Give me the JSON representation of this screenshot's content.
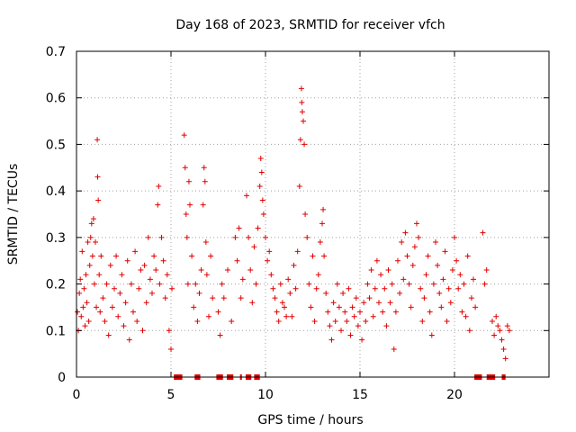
{
  "chart_data": {
    "type": "scatter",
    "title": "Day 168 of 2023, SRMTID for receiver vfch",
    "xlabel": "GPS time / hours",
    "ylabel": "SRMTID / TECUs",
    "xlim": [
      0,
      25
    ],
    "ylim": [
      0,
      0.7
    ],
    "xticks": [
      0,
      5,
      10,
      15,
      20
    ],
    "yticks": [
      0,
      0.1,
      0.2,
      0.3,
      0.4,
      0.5,
      0.6,
      0.7
    ],
    "grid": true,
    "marker": "+",
    "color": "#e00000",
    "series": [
      {
        "name": "SRMTID",
        "points": [
          [
            0.05,
            0.14
          ],
          [
            0.1,
            0.1
          ],
          [
            0.15,
            0.18
          ],
          [
            0.2,
            0.21
          ],
          [
            0.25,
            0.13
          ],
          [
            0.3,
            0.27
          ],
          [
            0.35,
            0.15
          ],
          [
            0.4,
            0.19
          ],
          [
            0.45,
            0.11
          ],
          [
            0.5,
            0.22
          ],
          [
            0.55,
            0.16
          ],
          [
            0.6,
            0.29
          ],
          [
            0.65,
            0.12
          ],
          [
            0.7,
            0.24
          ],
          [
            0.75,
            0.3
          ],
          [
            0.8,
            0.33
          ],
          [
            0.85,
            0.26
          ],
          [
            0.9,
            0.34
          ],
          [
            0.95,
            0.2
          ],
          [
            1.0,
            0.29
          ],
          [
            1.05,
            0.15
          ],
          [
            1.1,
            0.51
          ],
          [
            1.12,
            0.43
          ],
          [
            1.15,
            0.38
          ],
          [
            1.2,
            0.22
          ],
          [
            1.25,
            0.14
          ],
          [
            1.3,
            0.26
          ],
          [
            1.4,
            0.17
          ],
          [
            1.5,
            0.12
          ],
          [
            1.6,
            0.2
          ],
          [
            1.7,
            0.09
          ],
          [
            1.8,
            0.24
          ],
          [
            1.9,
            0.15
          ],
          [
            2.0,
            0.19
          ],
          [
            2.1,
            0.26
          ],
          [
            2.2,
            0.13
          ],
          [
            2.3,
            0.18
          ],
          [
            2.4,
            0.22
          ],
          [
            2.5,
            0.11
          ],
          [
            2.6,
            0.16
          ],
          [
            2.7,
            0.25
          ],
          [
            2.8,
            0.08
          ],
          [
            2.9,
            0.2
          ],
          [
            3.0,
            0.14
          ],
          [
            3.1,
            0.27
          ],
          [
            3.2,
            0.12
          ],
          [
            3.3,
            0.19
          ],
          [
            3.4,
            0.23
          ],
          [
            3.5,
            0.1
          ],
          [
            3.6,
            0.24
          ],
          [
            3.7,
            0.16
          ],
          [
            3.8,
            0.3
          ],
          [
            3.9,
            0.21
          ],
          [
            4.0,
            0.18
          ],
          [
            4.1,
            0.26
          ],
          [
            4.2,
            0.23
          ],
          [
            4.3,
            0.37
          ],
          [
            4.35,
            0.41
          ],
          [
            4.4,
            0.2
          ],
          [
            4.5,
            0.3
          ],
          [
            4.6,
            0.25
          ],
          [
            4.7,
            0.17
          ],
          [
            4.8,
            0.22
          ],
          [
            4.9,
            0.1
          ],
          [
            5.0,
            0.06
          ],
          [
            5.05,
            0.19
          ],
          [
            5.7,
            0.52
          ],
          [
            5.75,
            0.45
          ],
          [
            5.8,
            0.35
          ],
          [
            5.85,
            0.3
          ],
          [
            5.9,
            0.2
          ],
          [
            5.95,
            0.42
          ],
          [
            6.0,
            0.37
          ],
          [
            6.1,
            0.26
          ],
          [
            6.2,
            0.15
          ],
          [
            6.3,
            0.2
          ],
          [
            6.4,
            0.12
          ],
          [
            6.5,
            0.18
          ],
          [
            6.6,
            0.23
          ],
          [
            6.7,
            0.37
          ],
          [
            6.75,
            0.45
          ],
          [
            6.8,
            0.42
          ],
          [
            6.85,
            0.29
          ],
          [
            6.9,
            0.22
          ],
          [
            7.0,
            0.13
          ],
          [
            7.1,
            0.26
          ],
          [
            7.2,
            0.17
          ],
          [
            7.5,
            0.14
          ],
          [
            7.6,
            0.09
          ],
          [
            7.7,
            0.2
          ],
          [
            7.8,
            0.17
          ],
          [
            8.0,
            0.23
          ],
          [
            8.2,
            0.12
          ],
          [
            8.4,
            0.3
          ],
          [
            8.5,
            0.25
          ],
          [
            8.6,
            0.32
          ],
          [
            8.7,
            0.17
          ],
          [
            8.8,
            0.21
          ],
          [
            9.0,
            0.39
          ],
          [
            9.1,
            0.3
          ],
          [
            9.2,
            0.23
          ],
          [
            9.3,
            0.16
          ],
          [
            9.4,
            0.28
          ],
          [
            9.5,
            0.2
          ],
          [
            9.6,
            0.32
          ],
          [
            9.7,
            0.41
          ],
          [
            9.75,
            0.47
          ],
          [
            9.8,
            0.44
          ],
          [
            9.85,
            0.38
          ],
          [
            9.9,
            0.35
          ],
          [
            10.0,
            0.3
          ],
          [
            10.1,
            0.25
          ],
          [
            10.2,
            0.27
          ],
          [
            10.3,
            0.22
          ],
          [
            10.4,
            0.19
          ],
          [
            10.5,
            0.17
          ],
          [
            10.6,
            0.14
          ],
          [
            10.7,
            0.12
          ],
          [
            10.8,
            0.2
          ],
          [
            10.9,
            0.16
          ],
          [
            11.0,
            0.15
          ],
          [
            11.1,
            0.13
          ],
          [
            11.2,
            0.21
          ],
          [
            11.3,
            0.18
          ],
          [
            11.4,
            0.13
          ],
          [
            11.5,
            0.24
          ],
          [
            11.6,
            0.19
          ],
          [
            11.7,
            0.27
          ],
          [
            11.8,
            0.41
          ],
          [
            11.85,
            0.51
          ],
          [
            11.9,
            0.62
          ],
          [
            11.92,
            0.59
          ],
          [
            11.95,
            0.57
          ],
          [
            12.0,
            0.55
          ],
          [
            12.05,
            0.5
          ],
          [
            12.1,
            0.35
          ],
          [
            12.2,
            0.3
          ],
          [
            12.3,
            0.2
          ],
          [
            12.4,
            0.15
          ],
          [
            12.5,
            0.26
          ],
          [
            12.6,
            0.12
          ],
          [
            12.7,
            0.19
          ],
          [
            12.8,
            0.22
          ],
          [
            12.9,
            0.29
          ],
          [
            13.0,
            0.33
          ],
          [
            13.05,
            0.36
          ],
          [
            13.1,
            0.26
          ],
          [
            13.2,
            0.18
          ],
          [
            13.3,
            0.14
          ],
          [
            13.4,
            0.11
          ],
          [
            13.5,
            0.08
          ],
          [
            13.6,
            0.16
          ],
          [
            13.7,
            0.12
          ],
          [
            13.8,
            0.2
          ],
          [
            13.9,
            0.15
          ],
          [
            14.0,
            0.1
          ],
          [
            14.1,
            0.18
          ],
          [
            14.2,
            0.14
          ],
          [
            14.3,
            0.12
          ],
          [
            14.4,
            0.19
          ],
          [
            14.5,
            0.09
          ],
          [
            14.6,
            0.15
          ],
          [
            14.7,
            0.13
          ],
          [
            14.8,
            0.17
          ],
          [
            14.9,
            0.11
          ],
          [
            15.0,
            0.14
          ],
          [
            15.1,
            0.08
          ],
          [
            15.2,
            0.16
          ],
          [
            15.3,
            0.12
          ],
          [
            15.4,
            0.2
          ],
          [
            15.5,
            0.17
          ],
          [
            15.6,
            0.23
          ],
          [
            15.7,
            0.13
          ],
          [
            15.8,
            0.19
          ],
          [
            15.9,
            0.25
          ],
          [
            16.0,
            0.16
          ],
          [
            16.1,
            0.22
          ],
          [
            16.2,
            0.14
          ],
          [
            16.3,
            0.19
          ],
          [
            16.4,
            0.11
          ],
          [
            16.5,
            0.23
          ],
          [
            16.6,
            0.16
          ],
          [
            16.7,
            0.2
          ],
          [
            16.8,
            0.06
          ],
          [
            16.9,
            0.14
          ],
          [
            17.0,
            0.25
          ],
          [
            17.1,
            0.18
          ],
          [
            17.2,
            0.29
          ],
          [
            17.3,
            0.21
          ],
          [
            17.4,
            0.31
          ],
          [
            17.5,
            0.26
          ],
          [
            17.6,
            0.2
          ],
          [
            17.7,
            0.15
          ],
          [
            17.8,
            0.24
          ],
          [
            17.9,
            0.28
          ],
          [
            18.0,
            0.33
          ],
          [
            18.1,
            0.3
          ],
          [
            18.2,
            0.19
          ],
          [
            18.3,
            0.12
          ],
          [
            18.4,
            0.17
          ],
          [
            18.5,
            0.22
          ],
          [
            18.6,
            0.26
          ],
          [
            18.7,
            0.14
          ],
          [
            18.8,
            0.09
          ],
          [
            18.9,
            0.2
          ],
          [
            19.0,
            0.29
          ],
          [
            19.1,
            0.24
          ],
          [
            19.2,
            0.18
          ],
          [
            19.3,
            0.15
          ],
          [
            19.4,
            0.21
          ],
          [
            19.5,
            0.27
          ],
          [
            19.6,
            0.12
          ],
          [
            19.7,
            0.19
          ],
          [
            19.8,
            0.16
          ],
          [
            19.9,
            0.23
          ],
          [
            20.0,
            0.3
          ],
          [
            20.1,
            0.25
          ],
          [
            20.2,
            0.19
          ],
          [
            20.3,
            0.22
          ],
          [
            20.4,
            0.14
          ],
          [
            20.5,
            0.2
          ],
          [
            20.6,
            0.13
          ],
          [
            20.7,
            0.26
          ],
          [
            20.8,
            0.1
          ],
          [
            20.9,
            0.17
          ],
          [
            21.0,
            0.21
          ],
          [
            21.1,
            0.15
          ],
          [
            21.5,
            0.31
          ],
          [
            21.6,
            0.2
          ],
          [
            21.7,
            0.23
          ],
          [
            22.0,
            0.12
          ],
          [
            22.1,
            0.09
          ],
          [
            22.2,
            0.13
          ],
          [
            22.3,
            0.11
          ],
          [
            22.4,
            0.1
          ],
          [
            22.5,
            0.08
          ],
          [
            22.6,
            0.06
          ],
          [
            22.7,
            0.04
          ],
          [
            22.8,
            0.11
          ],
          [
            22.9,
            0.1
          ]
        ]
      }
    ],
    "zero_runs": [
      [
        5.15,
        5.6
      ],
      [
        6.25,
        6.55
      ],
      [
        7.4,
        7.75
      ],
      [
        7.95,
        8.3
      ],
      [
        8.65,
        8.75
      ],
      [
        8.95,
        9.25
      ],
      [
        9.4,
        9.7
      ],
      [
        21.05,
        21.45
      ],
      [
        21.7,
        22.15
      ],
      [
        22.5,
        22.7
      ]
    ]
  }
}
